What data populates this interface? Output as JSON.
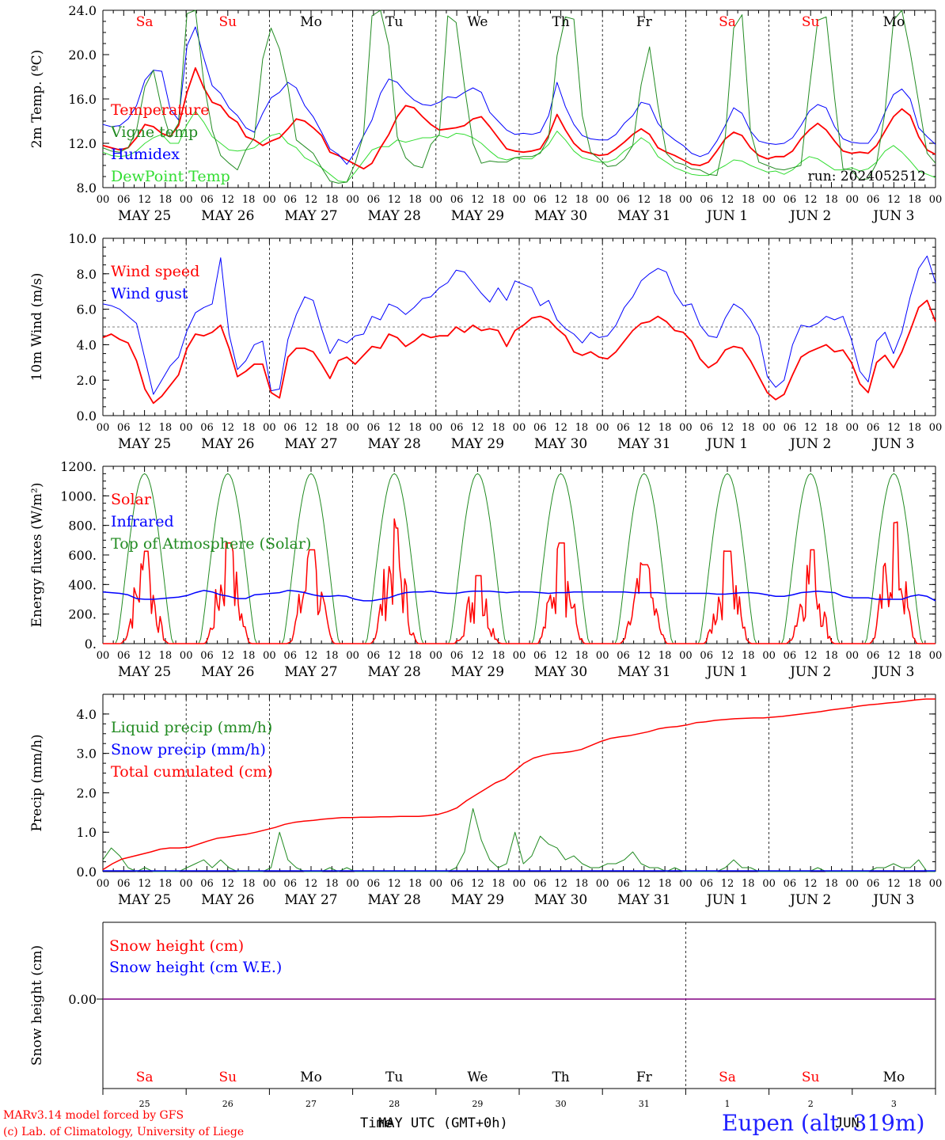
{
  "footer": {
    "model": "MARv3.14 model forced by GFS",
    "credit": "(c) Lab. of Climatology, University of Liege",
    "station": "Eupen (alt. 319m)",
    "time_label_a": "Time",
    "time_label_b": "MAY UTC (GMT+0h)",
    "time_label_c": "JUN"
  },
  "colors": {
    "red": "#ff0000",
    "blue": "#0000ff",
    "green": "#228b22",
    "lightgreen": "#33dd33",
    "purple": "#800080"
  },
  "day_axis": {
    "hour_ticks": [
      "00",
      "06",
      "12",
      "18"
    ],
    "dates": [
      "MAY 25",
      "MAY 26",
      "MAY 27",
      "MAY 28",
      "MAY 29",
      "MAY 30",
      "MAY 31",
      "JUN  1",
      "JUN  2",
      "JUN  3"
    ],
    "weekdays": [
      "Sa",
      "Su",
      "Mo",
      "Tu",
      "We",
      "Th",
      "Fr",
      "Sa",
      "Su",
      "Mo"
    ],
    "weekday_colors": [
      "red",
      "red",
      "black",
      "black",
      "black",
      "black",
      "black",
      "red",
      "red",
      "black"
    ],
    "day_numbers": [
      "25",
      "26",
      "27",
      "28",
      "29",
      "30",
      "31",
      "1",
      "2",
      "3"
    ]
  },
  "chart_data": [
    {
      "type": "line",
      "ylabel": "2m Temp. (ºC)",
      "ylim": [
        8.0,
        24.0
      ],
      "yticks": [
        "8.0",
        "12.0",
        "16.0",
        "20.0",
        "24.0"
      ],
      "annotation": "run: 2024052512",
      "series": [
        {
          "name": "Temperature",
          "color": "red",
          "values": [
            11.8,
            11.6,
            11.4,
            11.6,
            12.5,
            13.7,
            13.5,
            12.9,
            12.6,
            13.6,
            16.6,
            18.8,
            17.0,
            15.7,
            15.4,
            14.4,
            13.9,
            12.6,
            12.3,
            11.8,
            12.2,
            12.5,
            13.3,
            14.2,
            14.0,
            13.4,
            12.7,
            11.2,
            10.9,
            10.5,
            10.1,
            9.7,
            10.2,
            11.6,
            12.8,
            14.4,
            15.4,
            15.2,
            14.4,
            13.7,
            13.2,
            13.3,
            13.4,
            13.6,
            14.2,
            14.4,
            13.5,
            12.5,
            11.5,
            11.3,
            11.2,
            11.3,
            11.5,
            12.7,
            14.6,
            13.2,
            12.0,
            11.3,
            11.1,
            10.9,
            11.0,
            11.5,
            12.1,
            12.8,
            13.3,
            12.8,
            11.6,
            11.2,
            10.9,
            10.5,
            10.1,
            10.0,
            10.3,
            11.3,
            12.4,
            13.0,
            12.7,
            11.6,
            10.9,
            10.6,
            10.8,
            10.8,
            11.3,
            12.4,
            13.2,
            13.8,
            13.2,
            12.2,
            11.3,
            11.1,
            11.2,
            11.1,
            11.8,
            13.1,
            14.4,
            15.1,
            14.5,
            12.6,
            11.4,
            11.0
          ]
        },
        {
          "name": "Vigne temp",
          "color": "green",
          "values": [
            11.6,
            11.3,
            11.2,
            11.6,
            13.2,
            17.1,
            18.6,
            15.1,
            12.6,
            13.8,
            23.7,
            24.0,
            17.5,
            13.2,
            10.9,
            10.2,
            9.6,
            11.4,
            12.5,
            19.6,
            22.4,
            20.5,
            17.1,
            12.3,
            11.7,
            11.1,
            9.8,
            8.6,
            8.4,
            8.5,
            10.2,
            12.8,
            23.5,
            24.0,
            20.8,
            12.6,
            10.7,
            10.0,
            9.8,
            11.9,
            12.8,
            23.5,
            22.9,
            17.1,
            12.0,
            10.2,
            10.4,
            10.3,
            10.3,
            10.7,
            10.8,
            10.8,
            11.1,
            12.5,
            19.9,
            23.4,
            23.2,
            14.5,
            11.2,
            10.6,
            9.9,
            10.0,
            10.6,
            11.8,
            17.3,
            20.7,
            15.4,
            11.1,
            10.3,
            10.1,
            9.7,
            9.6,
            9.2,
            9.1,
            12.5,
            22.4,
            23.6,
            13.1,
            10.3,
            10.0,
            9.7,
            9.6,
            9.8,
            10.0,
            16.9,
            23.1,
            23.4,
            16.1,
            9.7,
            9.6,
            8.7,
            8.8,
            10.2,
            14.8,
            23.1,
            24.0,
            20.2,
            15.7,
            11.1,
            10.2
          ]
        },
        {
          "name": "Humidex",
          "color": "blue",
          "values": [
            13.7,
            13.5,
            13.6,
            14.2,
            15.4,
            17.7,
            18.6,
            18.5,
            15.1,
            14.1,
            20.8,
            22.5,
            19.7,
            17.2,
            16.5,
            15.2,
            14.5,
            13.4,
            13.0,
            14.7,
            16.1,
            16.6,
            17.5,
            17.0,
            15.4,
            14.4,
            13.0,
            11.5,
            11.0,
            10.1,
            11.2,
            12.7,
            14.1,
            16.5,
            17.8,
            17.5,
            16.6,
            15.9,
            15.5,
            15.4,
            15.7,
            16.2,
            16.1,
            16.6,
            17.0,
            16.6,
            14.8,
            14.0,
            13.2,
            12.8,
            12.9,
            12.8,
            13.0,
            14.5,
            17.5,
            15.3,
            13.7,
            12.7,
            12.4,
            12.3,
            12.3,
            12.8,
            13.8,
            14.5,
            15.7,
            15.5,
            13.8,
            12.9,
            12.3,
            11.8,
            11.1,
            10.8,
            11.1,
            12.2,
            13.6,
            15.2,
            14.7,
            13.1,
            12.2,
            12.0,
            11.9,
            12.0,
            12.5,
            13.6,
            14.9,
            15.5,
            15.2,
            13.5,
            12.4,
            12.1,
            12.0,
            12.0,
            13.0,
            14.8,
            16.4,
            16.9,
            16.0,
            13.4,
            12.6,
            11.9
          ]
        },
        {
          "name": "DewPoint Temp",
          "color": "lightgreen",
          "values": [
            11.2,
            10.9,
            10.8,
            10.9,
            11.3,
            12.0,
            12.5,
            12.8,
            12.0,
            12.0,
            13.7,
            14.9,
            13.9,
            12.6,
            12.0,
            11.4,
            11.3,
            11.4,
            11.6,
            12.2,
            12.7,
            12.9,
            12.0,
            11.6,
            10.7,
            10.3,
            9.8,
            9.2,
            8.6,
            8.5,
            9.4,
            10.4,
            11.4,
            11.7,
            11.7,
            12.3,
            12.1,
            12.3,
            12.5,
            12.5,
            12.7,
            12.5,
            12.9,
            12.8,
            12.5,
            12.0,
            11.3,
            10.7,
            10.5,
            10.7,
            10.6,
            10.6,
            11.2,
            11.9,
            13.1,
            12.3,
            11.3,
            10.7,
            10.5,
            10.3,
            10.3,
            10.6,
            11.3,
            11.8,
            12.5,
            12.0,
            10.8,
            10.3,
            9.8,
            9.5,
            9.2,
            9.1,
            9.1,
            9.6,
            10.0,
            10.5,
            10.4,
            10.0,
            9.7,
            9.4,
            9.5,
            9.2,
            9.6,
            10.3,
            10.8,
            10.6,
            10.1,
            9.6,
            9.6,
            9.8,
            9.5,
            9.7,
            10.3,
            11.3,
            11.8,
            11.2,
            10.4,
            9.5,
            9.2,
            8.9
          ]
        }
      ]
    },
    {
      "type": "line",
      "ylabel": "10m Wind (m/s)",
      "ylim": [
        0.0,
        10.0
      ],
      "yticks": [
        "0.0",
        "2.0",
        "4.0",
        "6.0",
        "8.0",
        "10.0"
      ],
      "reference_line": 5.0,
      "series": [
        {
          "name": "Wind speed",
          "color": "red",
          "values": [
            4.4,
            4.6,
            4.3,
            4.1,
            3.1,
            1.5,
            0.7,
            1.1,
            1.7,
            2.3,
            3.8,
            4.6,
            4.5,
            4.7,
            5.1,
            3.8,
            2.2,
            2.5,
            2.9,
            2.9,
            1.3,
            1.0,
            3.3,
            3.8,
            3.8,
            3.6,
            2.9,
            2.1,
            3.1,
            3.3,
            2.9,
            3.4,
            3.9,
            3.8,
            4.6,
            4.4,
            3.9,
            4.2,
            4.6,
            4.4,
            4.5,
            4.5,
            5.0,
            4.7,
            5.1,
            4.8,
            4.9,
            4.8,
            3.9,
            4.8,
            5.1,
            5.5,
            5.6,
            5.4,
            4.9,
            4.5,
            3.6,
            3.4,
            3.6,
            3.3,
            3.2,
            3.6,
            4.2,
            4.8,
            5.2,
            5.3,
            5.6,
            5.3,
            4.8,
            4.7,
            4.2,
            3.2,
            2.7,
            3.0,
            3.7,
            3.9,
            3.8,
            3.1,
            2.2,
            1.3,
            0.9,
            1.2,
            2.3,
            3.3,
            3.6,
            3.8,
            4.0,
            3.6,
            3.7,
            3.0,
            1.8,
            1.3,
            3.0,
            3.4,
            2.7,
            3.6,
            4.8,
            6.1,
            6.5,
            5.3
          ]
        },
        {
          "name": "Wind gust",
          "color": "blue",
          "values": [
            6.3,
            6.2,
            6.0,
            5.6,
            5.2,
            3.2,
            1.2,
            2.0,
            2.8,
            3.3,
            4.8,
            5.8,
            6.1,
            6.3,
            8.9,
            4.6,
            2.6,
            3.1,
            4.0,
            4.2,
            1.4,
            1.5,
            4.3,
            5.7,
            6.7,
            6.5,
            4.9,
            3.5,
            4.3,
            4.1,
            4.5,
            4.6,
            5.6,
            5.4,
            6.3,
            6.1,
            5.7,
            6.1,
            6.6,
            6.7,
            7.2,
            7.5,
            8.2,
            8.1,
            7.5,
            6.9,
            6.4,
            7.2,
            6.5,
            7.6,
            7.4,
            7.2,
            6.2,
            6.5,
            5.4,
            4.9,
            4.6,
            4.1,
            4.7,
            4.4,
            4.5,
            5.1,
            6.1,
            6.7,
            7.6,
            8.0,
            8.3,
            8.1,
            6.9,
            6.2,
            6.3,
            5.1,
            4.5,
            4.4,
            5.5,
            6.3,
            6.0,
            5.4,
            4.5,
            2.2,
            1.6,
            2.0,
            4.0,
            5.1,
            5.0,
            5.2,
            5.6,
            5.4,
            5.6,
            4.3,
            2.5,
            1.9,
            4.2,
            4.7,
            3.5,
            4.7,
            6.7,
            8.3,
            9.0,
            7.5
          ]
        }
      ]
    },
    {
      "type": "line",
      "ylabel": "Energy fluxes (W/m²)",
      "ylim": [
        0,
        1200
      ],
      "yticks": [
        "0.",
        "200.",
        "400.",
        "600.",
        "800.",
        "1000.",
        "1200."
      ],
      "series": [
        {
          "name": "Solar",
          "color": "red",
          "peaks": [
            680,
            740,
            690,
            850,
            500,
            740,
            580,
            680,
            690,
            890
          ]
        },
        {
          "name": "Infrared",
          "color": "blue",
          "values": [
            350,
            345,
            340,
            330,
            305,
            300,
            300,
            305,
            310,
            315,
            325,
            345,
            360,
            350,
            330,
            320,
            305,
            305,
            330,
            335,
            340,
            345,
            360,
            355,
            345,
            330,
            320,
            320,
            325,
            320,
            300,
            290,
            290,
            300,
            310,
            330,
            345,
            350,
            350,
            355,
            345,
            340,
            340,
            350,
            355,
            355,
            355,
            350,
            345,
            350,
            350,
            350,
            345,
            340,
            345,
            345,
            350,
            350,
            350,
            350,
            350,
            350,
            350,
            345,
            345,
            345,
            345,
            340,
            340,
            340,
            340,
            340,
            340,
            335,
            335,
            340,
            345,
            345,
            340,
            330,
            320,
            320,
            330,
            345,
            350,
            355,
            350,
            345,
            320,
            310,
            310,
            310,
            300,
            300,
            300,
            300,
            320,
            330,
            320,
            290
          ]
        },
        {
          "name": "Top of Atmosphere (Solar)",
          "color": "green",
          "peak": 1150
        }
      ]
    },
    {
      "type": "line",
      "ylabel": "Precip (mm/h)",
      "ylim": [
        0.0,
        4.5
      ],
      "yticks": [
        "0.0",
        "1.0",
        "2.0",
        "3.0",
        "4.0"
      ],
      "series": [
        {
          "name": "Liquid precip (mm/h)",
          "color": "green",
          "values": [
            0.3,
            0.6,
            0.4,
            0.1,
            0.0,
            0.1,
            0.0,
            0.0,
            0.0,
            0.0,
            0.1,
            0.2,
            0.3,
            0.1,
            0.3,
            0.1,
            0.0,
            0.0,
            0.0,
            0.0,
            0.1,
            1.0,
            0.3,
            0.1,
            0.0,
            0.0,
            0.0,
            0.1,
            0.0,
            0.1,
            0.0,
            0.0,
            0.0,
            0.0,
            0.0,
            0.0,
            0.0,
            0.0,
            0.0,
            0.0,
            0.0,
            0.0,
            0.1,
            0.5,
            1.6,
            0.8,
            0.3,
            0.1,
            0.2,
            1.0,
            0.2,
            0.4,
            0.9,
            0.7,
            0.6,
            0.3,
            0.4,
            0.2,
            0.1,
            0.1,
            0.2,
            0.2,
            0.3,
            0.5,
            0.2,
            0.1,
            0.1,
            0.0,
            0.1,
            0.0,
            0.0,
            0.0,
            0.0,
            0.0,
            0.1,
            0.3,
            0.1,
            0.1,
            0.0,
            0.0,
            0.0,
            0.0,
            0.0,
            0.0,
            0.0,
            0.1,
            0.0,
            0.0,
            0.0,
            0.0,
            0.0,
            0.0,
            0.1,
            0.1,
            0.2,
            0.1,
            0.1,
            0.3,
            0.0,
            0.0
          ]
        },
        {
          "name": "Snow precip (mm/h)",
          "color": "blue",
          "values": [
            0.0
          ]
        },
        {
          "name": "Total cumulated (cm)",
          "color": "red",
          "values": [
            0.05,
            0.2,
            0.32,
            0.38,
            0.44,
            0.5,
            0.57,
            0.6,
            0.6,
            0.62,
            0.7,
            0.78,
            0.85,
            0.88,
            0.92,
            0.95,
            1.0,
            1.06,
            1.12,
            1.2,
            1.25,
            1.28,
            1.3,
            1.33,
            1.35,
            1.37,
            1.37,
            1.38,
            1.38,
            1.39,
            1.39,
            1.4,
            1.4,
            1.4,
            1.42,
            1.45,
            1.52,
            1.62,
            1.8,
            1.95,
            2.1,
            2.25,
            2.35,
            2.55,
            2.75,
            2.88,
            2.95,
            3.0,
            3.02,
            3.05,
            3.1,
            3.2,
            3.3,
            3.38,
            3.42,
            3.45,
            3.5,
            3.55,
            3.62,
            3.66,
            3.68,
            3.72,
            3.78,
            3.8,
            3.84,
            3.86,
            3.88,
            3.89,
            3.9,
            3.9,
            3.92,
            3.94,
            3.97,
            4.0,
            4.03,
            4.06,
            4.1,
            4.13,
            4.16,
            4.2,
            4.23,
            4.25,
            4.28,
            4.3,
            4.33,
            4.36,
            4.38,
            4.38
          ]
        }
      ]
    },
    {
      "type": "line",
      "ylabel": "Snow height (cm)",
      "yticks": [
        "0.00"
      ],
      "series": [
        {
          "name": "Snow height (cm)",
          "color": "red",
          "values": [
            0.0
          ]
        },
        {
          "name": "Snow height (cm W.E.)",
          "color": "blue",
          "values": [
            0.0
          ]
        }
      ]
    }
  ]
}
